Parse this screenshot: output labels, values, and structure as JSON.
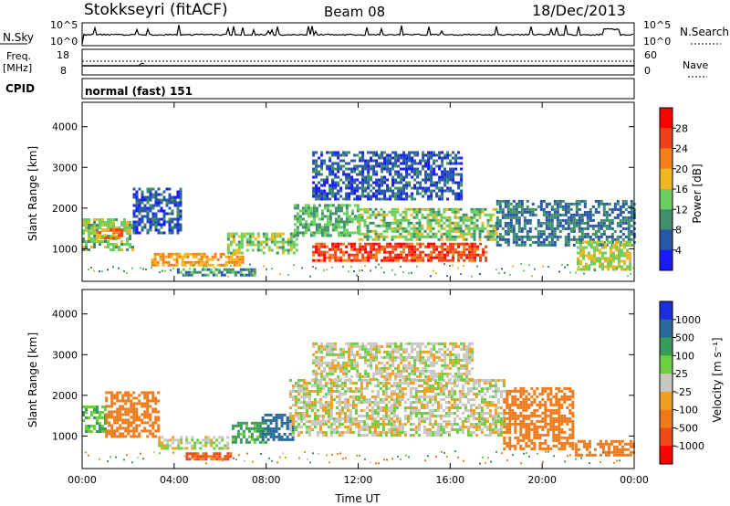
{
  "header": {
    "station": "Stokkseyri (fitACF)",
    "beam": "Beam 08",
    "date": "18/Dec/2013"
  },
  "strips": {
    "nsky_label": "N.Sky",
    "nsearch_label": "N.Search",
    "nsky_ticks_left": [
      "10^5",
      "10^0"
    ],
    "nsky_ticks_right": [
      "10^5",
      "10^0"
    ],
    "freq_label": "Freq.",
    "freq_unit": "[MHz]",
    "freq_ticks": [
      "18",
      "8"
    ],
    "nave_label": "Nave",
    "nave_ticks": [
      "60",
      "0"
    ],
    "cpid_label": "CPID",
    "cpid_value": "normal (fast) 151"
  },
  "colors": {
    "power_scale": [
      "#1a1aff",
      "#2a58a8",
      "#3f8f6a",
      "#6bd060",
      "#f0b820",
      "#f5801a",
      "#f04018",
      "#ff0000"
    ],
    "velocity_scale": [
      "#1a2ee0",
      "#2a6a9a",
      "#3a9a5a",
      "#6ad040",
      "#c8c8c0",
      "#f0a020",
      "#f07a1a",
      "#f04a18",
      "#ff0000"
    ]
  },
  "chart_data": [
    {
      "type": "heatmap",
      "name": "power-panel",
      "ylabel": "Slant Range [km]",
      "yticks": [
        "1000",
        "2000",
        "3000",
        "4000"
      ],
      "ylim": [
        200,
        4600
      ],
      "colorbar": {
        "label": "Power [dB]",
        "ticks": [
          "4",
          "8",
          "12",
          "16",
          "20",
          "24",
          "28"
        ],
        "range": [
          0,
          30
        ]
      },
      "echo_regions": [
        {
          "t0": 0.0,
          "t1": 2.2,
          "r0": 1000,
          "r1": 1750,
          "level": 14
        },
        {
          "t0": 0.6,
          "t1": 1.7,
          "r0": 1250,
          "r1": 1500,
          "level": 22
        },
        {
          "t0": 2.2,
          "t1": 4.3,
          "r0": 1400,
          "r1": 2500,
          "level": 6
        },
        {
          "t0": 3.0,
          "t1": 7.0,
          "r0": 600,
          "r1": 900,
          "level": 20
        },
        {
          "t0": 4.0,
          "t1": 7.5,
          "r0": 350,
          "r1": 520,
          "level": 10
        },
        {
          "t0": 6.3,
          "t1": 9.3,
          "r0": 900,
          "r1": 1400,
          "level": 14
        },
        {
          "t0": 9.2,
          "t1": 12.0,
          "r0": 1300,
          "r1": 2100,
          "level": 12
        },
        {
          "t0": 10.0,
          "t1": 17.5,
          "r0": 700,
          "r1": 1150,
          "level": 26
        },
        {
          "t0": 12.0,
          "t1": 18.0,
          "r0": 1200,
          "r1": 2000,
          "level": 14
        },
        {
          "t0": 10.0,
          "t1": 16.5,
          "r0": 2200,
          "r1": 3400,
          "level": 6
        },
        {
          "t0": 18.0,
          "t1": 24.0,
          "r0": 1100,
          "r1": 2200,
          "level": 8
        },
        {
          "t0": 21.5,
          "t1": 23.8,
          "r0": 500,
          "r1": 1200,
          "level": 16
        }
      ]
    },
    {
      "type": "heatmap",
      "name": "velocity-panel",
      "xlabel": "Time UT",
      "xticks": [
        "00:00",
        "04:00",
        "08:00",
        "12:00",
        "16:00",
        "20:00",
        "00:00"
      ],
      "xlim": [
        0,
        24
      ],
      "ylabel": "Slant Range [km]",
      "yticks": [
        "1000",
        "2000",
        "3000",
        "4000"
      ],
      "ylim": [
        200,
        4600
      ],
      "colorbar": {
        "label": "Velocity [m s⁻¹]",
        "ticks": [
          "1000",
          "500",
          "100",
          "25",
          "-25",
          "-100",
          "-500",
          "-1000"
        ]
      },
      "echo_regions": [
        {
          "t0": 0.0,
          "t1": 1.0,
          "r0": 1100,
          "r1": 1750,
          "level": 50
        },
        {
          "t0": 1.0,
          "t1": 3.3,
          "r0": 1000,
          "r1": 2100,
          "level": -150
        },
        {
          "t0": 3.3,
          "t1": 6.3,
          "r0": 700,
          "r1": 1000,
          "level": 0
        },
        {
          "t0": 4.5,
          "t1": 6.5,
          "r0": 400,
          "r1": 600,
          "level": -200
        },
        {
          "t0": 6.5,
          "t1": 8.0,
          "r0": 850,
          "r1": 1350,
          "level": 80
        },
        {
          "t0": 7.8,
          "t1": 9.2,
          "r0": 900,
          "r1": 1550,
          "level": 300
        },
        {
          "t0": 9.0,
          "t1": 18.3,
          "r0": 1000,
          "r1": 2400,
          "level": 0
        },
        {
          "t0": 10.0,
          "t1": 17.0,
          "r0": 2400,
          "r1": 3300,
          "level": 0
        },
        {
          "t0": 18.3,
          "t1": 21.3,
          "r0": 700,
          "r1": 2200,
          "level": -150
        },
        {
          "t0": 21.3,
          "t1": 24.0,
          "r0": 500,
          "r1": 900,
          "level": -120
        }
      ]
    }
  ]
}
